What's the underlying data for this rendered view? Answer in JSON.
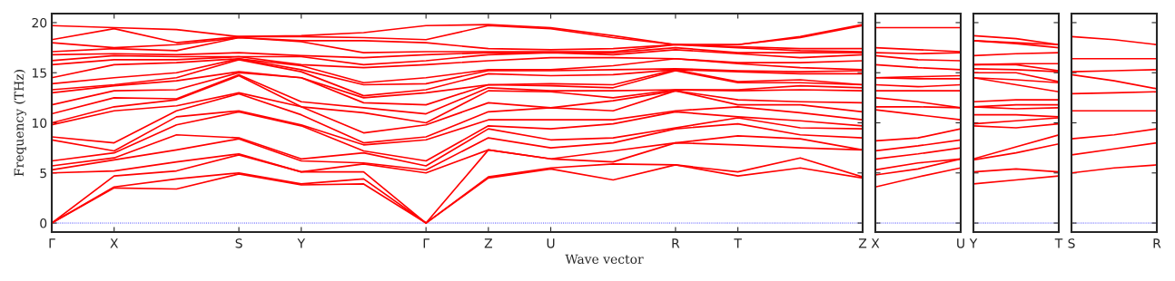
{
  "chart_data": [
    {
      "type": "line",
      "ylabel": "Frequency (THz)",
      "xlabel": "Wave vector",
      "categories": [
        "Γ",
        "X",
        null,
        "S",
        "Y",
        null,
        "Γ",
        "Z",
        "U",
        null,
        "R",
        "T",
        null,
        "Z"
      ],
      "ylim": [
        -0.9,
        20.9
      ],
      "yticks": [
        0,
        5,
        10,
        15,
        20
      ],
      "ref_lines": [
        {
          "axis": "y",
          "value": 0,
          "color": "#0000ff",
          "line_style": "dotted"
        }
      ],
      "series": [
        {
          "color": "#ff0000",
          "values": [
            0,
            3.5,
            3.4,
            4.9,
            3.8,
            3.9,
            0,
            4.5,
            5.4,
            4.3,
            5.8,
            4.7,
            5.5,
            4.5
          ]
        },
        {
          "color": "#ff0000",
          "values": [
            0,
            3.6,
            4.4,
            5.0,
            3.9,
            4.4,
            0,
            4.6,
            5.5,
            5.9,
            5.8,
            5.1,
            6.5,
            4.6
          ]
        },
        {
          "color": "#ff0000",
          "values": [
            0,
            4.7,
            5.2,
            6.8,
            5.1,
            5.1,
            0,
            7.3,
            6.4,
            6.1,
            8.0,
            7.8,
            7.5,
            7.3
          ]
        },
        {
          "color": "#ff0000",
          "values": [
            5.0,
            5.2,
            6.1,
            6.9,
            5.1,
            5.9,
            5.0,
            7.3,
            6.4,
            7.2,
            8.0,
            8.7,
            8.4,
            7.3
          ]
        },
        {
          "color": "#ff0000",
          "values": [
            5.3,
            6.3,
            7.3,
            8.4,
            6.2,
            6.0,
            5.3,
            8.5,
            7.5,
            8.0,
            9.4,
            9.9,
            8.8,
            8.5
          ]
        },
        {
          "color": "#ff0000",
          "values": [
            5.7,
            6.5,
            8.8,
            8.5,
            6.4,
            7.0,
            5.7,
            9.4,
            8.3,
            8.5,
            9.5,
            10.5,
            9.5,
            9.4
          ]
        },
        {
          "color": "#ff0000",
          "values": [
            6.2,
            7.0,
            9.8,
            11.1,
            9.7,
            7.2,
            6.2,
            9.7,
            9.4,
            9.9,
            11.1,
            10.6,
            10.2,
            9.7
          ]
        },
        {
          "color": "#ff0000",
          "values": [
            8.3,
            7.2,
            10.6,
            11.2,
            9.8,
            7.8,
            8.3,
            10.3,
            10.3,
            10.3,
            11.2,
            11.6,
            11.0,
            10.3
          ]
        },
        {
          "color": "#ff0000",
          "values": [
            8.6,
            8.0,
            11.2,
            12.9,
            10.8,
            8.0,
            8.6,
            11.1,
            11.5,
            11.2,
            13.2,
            11.8,
            11.8,
            11.1
          ]
        },
        {
          "color": "#ff0000",
          "values": [
            9.8,
            11.2,
            11.7,
            13.0,
            11.6,
            9.0,
            9.8,
            12.0,
            11.5,
            12.2,
            13.2,
            12.3,
            12.1,
            12.0
          ]
        },
        {
          "color": "#ff0000",
          "values": [
            10.0,
            11.6,
            12.3,
            14.7,
            11.6,
            11.0,
            10.0,
            13.2,
            13.1,
            12.5,
            13.3,
            13.2,
            13.3,
            13.2
          ]
        },
        {
          "color": "#ff0000",
          "values": [
            10.9,
            12.5,
            12.4,
            14.8,
            12.1,
            11.5,
            10.9,
            13.5,
            13.2,
            13.2,
            13.3,
            13.3,
            13.7,
            13.5
          ]
        },
        {
          "color": "#ff0000",
          "values": [
            11.8,
            13.2,
            13.3,
            15.0,
            14.5,
            12.0,
            11.8,
            13.8,
            13.7,
            13.5,
            15.2,
            14.0,
            14.0,
            13.8
          ]
        },
        {
          "color": "#ff0000",
          "values": [
            13.0,
            13.7,
            14.2,
            15.1,
            14.5,
            12.5,
            13.0,
            13.8,
            13.9,
            13.8,
            15.3,
            14.1,
            14.3,
            13.8
          ]
        },
        {
          "color": "#ff0000",
          "values": [
            13.3,
            13.8,
            14.5,
            16.3,
            15.1,
            12.7,
            13.3,
            14.9,
            14.7,
            14.8,
            15.3,
            15.1,
            14.9,
            14.9
          ]
        },
        {
          "color": "#ff0000",
          "values": [
            13.9,
            14.5,
            15.0,
            16.4,
            15.3,
            13.8,
            13.9,
            15.2,
            15.2,
            15.3,
            15.4,
            15.2,
            15.1,
            15.2
          ]
        },
        {
          "color": "#ff0000",
          "values": [
            14.5,
            15.8,
            16.0,
            16.4,
            15.7,
            14.0,
            14.5,
            15.3,
            15.3,
            15.7,
            16.4,
            15.9,
            15.5,
            15.3
          ]
        },
        {
          "color": "#ff0000",
          "values": [
            15.8,
            16.3,
            16.3,
            16.6,
            15.8,
            15.5,
            15.8,
            16.2,
            16.5,
            16.5,
            16.4,
            16.0,
            16.0,
            16.2
          ]
        },
        {
          "color": "#ff0000",
          "values": [
            16.2,
            16.7,
            16.6,
            16.6,
            16.6,
            15.8,
            16.2,
            16.8,
            17.0,
            16.8,
            17.3,
            16.9,
            16.5,
            16.8
          ]
        },
        {
          "color": "#ff0000",
          "values": [
            16.8,
            16.9,
            16.8,
            17.0,
            16.7,
            16.5,
            16.8,
            17.0,
            17.0,
            17.0,
            17.5,
            17.0,
            17.0,
            17.0
          ]
        },
        {
          "color": "#ff0000",
          "values": [
            17.1,
            17.4,
            17.2,
            18.5,
            18.1,
            17.0,
            17.1,
            17.1,
            17.1,
            17.1,
            17.8,
            17.5,
            17.2,
            17.1
          ]
        },
        {
          "color": "#ff0000",
          "values": [
            18.0,
            17.5,
            17.8,
            18.5,
            18.2,
            18.2,
            18.0,
            17.4,
            17.3,
            17.4,
            17.8,
            17.6,
            17.4,
            17.4
          ]
        },
        {
          "color": "#ff0000",
          "values": [
            18.3,
            19.4,
            18.0,
            18.6,
            18.6,
            18.5,
            18.3,
            19.7,
            19.4,
            18.5,
            17.8,
            17.8,
            18.5,
            19.7
          ]
        },
        {
          "color": "#ff0000",
          "values": [
            19.7,
            19.5,
            19.3,
            18.6,
            18.7,
            19.0,
            19.7,
            19.8,
            19.5,
            18.7,
            17.8,
            17.8,
            18.6,
            19.8
          ]
        }
      ]
    },
    {
      "type": "line",
      "tick_labels": "x",
      "categories": [
        "X",
        null,
        "U"
      ],
      "ylim": [
        -0.9,
        20.9
      ],
      "yticks": [
        0,
        5,
        10,
        15,
        20
      ],
      "ref_lines": [
        {
          "axis": "y",
          "value": 0,
          "color": "#0000ff",
          "line_style": "dotted"
        }
      ],
      "series": [
        {
          "color": "#ff0000",
          "values": [
            3.6,
            4.6,
            5.5
          ]
        },
        {
          "color": "#ff0000",
          "values": [
            4.8,
            5.4,
            6.4
          ]
        },
        {
          "color": "#ff0000",
          "values": [
            5.3,
            6.0,
            6.4
          ]
        },
        {
          "color": "#ff0000",
          "values": [
            6.4,
            6.9,
            7.5
          ]
        },
        {
          "color": "#ff0000",
          "values": [
            7.2,
            7.7,
            8.3
          ]
        },
        {
          "color": "#ff0000",
          "values": [
            8.2,
            8.5,
            9.4
          ]
        },
        {
          "color": "#ff0000",
          "values": [
            11.3,
            10.8,
            10.3
          ]
        },
        {
          "color": "#ff0000",
          "values": [
            11.6,
            11.6,
            11.5
          ]
        },
        {
          "color": "#ff0000",
          "values": [
            12.5,
            12.1,
            11.5
          ]
        },
        {
          "color": "#ff0000",
          "values": [
            13.2,
            13.2,
            13.2
          ]
        },
        {
          "color": "#ff0000",
          "values": [
            13.8,
            13.6,
            13.8
          ]
        },
        {
          "color": "#ff0000",
          "values": [
            14.5,
            14.4,
            14.4
          ]
        },
        {
          "color": "#ff0000",
          "values": [
            14.5,
            14.6,
            14.7
          ]
        },
        {
          "color": "#ff0000",
          "values": [
            15.8,
            15.5,
            15.3
          ]
        },
        {
          "color": "#ff0000",
          "values": [
            16.7,
            16.3,
            16.2
          ]
        },
        {
          "color": "#ff0000",
          "values": [
            17.0,
            16.9,
            17.0
          ]
        },
        {
          "color": "#ff0000",
          "values": [
            17.5,
            17.3,
            17.1
          ]
        },
        {
          "color": "#ff0000",
          "values": [
            19.5,
            19.5,
            19.5
          ]
        }
      ]
    },
    {
      "type": "line",
      "tick_labels": "x",
      "categories": [
        "Y",
        null,
        "T"
      ],
      "ylim": [
        -0.9,
        20.9
      ],
      "yticks": [
        0,
        5,
        10,
        15,
        20
      ],
      "ref_lines": [
        {
          "axis": "y",
          "value": 0,
          "color": "#0000ff",
          "line_style": "dotted"
        }
      ],
      "series": [
        {
          "color": "#ff0000",
          "values": [
            3.9,
            4.3,
            4.7
          ]
        },
        {
          "color": "#ff0000",
          "values": [
            5.1,
            5.4,
            5.1
          ]
        },
        {
          "color": "#ff0000",
          "values": [
            6.3,
            7.0,
            7.9
          ]
        },
        {
          "color": "#ff0000",
          "values": [
            6.4,
            7.6,
            8.8
          ]
        },
        {
          "color": "#ff0000",
          "values": [
            9.7,
            9.5,
            9.9
          ]
        },
        {
          "color": "#ff0000",
          "values": [
            9.9,
            10.2,
            10.5
          ]
        },
        {
          "color": "#ff0000",
          "values": [
            10.8,
            10.8,
            10.6
          ]
        },
        {
          "color": "#ff0000",
          "values": [
            11.6,
            11.4,
            11.5
          ]
        },
        {
          "color": "#ff0000",
          "values": [
            11.6,
            11.8,
            11.8
          ]
        },
        {
          "color": "#ff0000",
          "values": [
            12.1,
            12.3,
            12.3
          ]
        },
        {
          "color": "#ff0000",
          "values": [
            14.5,
            13.8,
            13.1
          ]
        },
        {
          "color": "#ff0000",
          "values": [
            14.5,
            14.3,
            14.0
          ]
        },
        {
          "color": "#ff0000",
          "values": [
            15.0,
            15.0,
            14.1
          ]
        },
        {
          "color": "#ff0000",
          "values": [
            15.4,
            15.3,
            15.1
          ]
        },
        {
          "color": "#ff0000",
          "values": [
            15.8,
            15.8,
            15.2
          ]
        },
        {
          "color": "#ff0000",
          "values": [
            15.8,
            15.9,
            15.9
          ]
        },
        {
          "color": "#ff0000",
          "values": [
            16.7,
            16.9,
            17.0
          ]
        },
        {
          "color": "#ff0000",
          "values": [
            18.2,
            17.9,
            17.5
          ]
        },
        {
          "color": "#ff0000",
          "values": [
            18.2,
            18.0,
            17.8
          ]
        },
        {
          "color": "#ff0000",
          "values": [
            18.7,
            18.4,
            17.8
          ]
        }
      ]
    },
    {
      "type": "line",
      "tick_labels": "x",
      "categories": [
        "S",
        null,
        "R"
      ],
      "ylim": [
        -0.9,
        20.9
      ],
      "yticks": [
        0,
        5,
        10,
        15,
        20
      ],
      "ref_lines": [
        {
          "axis": "y",
          "value": 0,
          "color": "#0000ff",
          "line_style": "dotted"
        }
      ],
      "series": [
        {
          "color": "#ff0000",
          "values": [
            5.0,
            5.5,
            5.8
          ]
        },
        {
          "color": "#ff0000",
          "values": [
            6.8,
            7.4,
            8.0
          ]
        },
        {
          "color": "#ff0000",
          "values": [
            8.4,
            8.8,
            9.4
          ]
        },
        {
          "color": "#ff0000",
          "values": [
            11.2,
            11.2,
            11.2
          ]
        },
        {
          "color": "#ff0000",
          "values": [
            12.9,
            13.0,
            13.1
          ]
        },
        {
          "color": "#ff0000",
          "values": [
            14.8,
            14.2,
            13.4
          ]
        },
        {
          "color": "#ff0000",
          "values": [
            15.1,
            15.2,
            15.3
          ]
        },
        {
          "color": "#ff0000",
          "values": [
            16.4,
            16.4,
            16.4
          ]
        },
        {
          "color": "#ff0000",
          "values": [
            18.6,
            18.3,
            17.8
          ]
        }
      ]
    }
  ]
}
